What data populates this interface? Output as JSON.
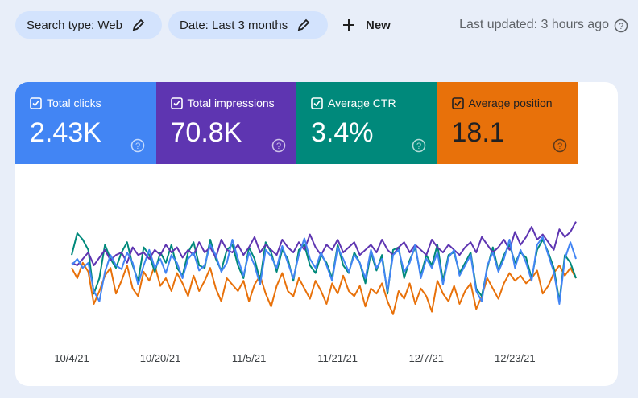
{
  "filters": [
    "Search type: Web",
    "Date: Last 3 months"
  ],
  "new_button": "New",
  "last_updated": "Last updated: 3 hours ago",
  "chart_data": {
    "type": "line",
    "categories": [
      "10/4/21",
      null,
      null,
      null,
      null,
      null,
      null,
      null,
      null,
      null,
      null,
      null,
      null,
      null,
      null,
      null,
      "10/20/21",
      null,
      null,
      null,
      null,
      null,
      null,
      null,
      null,
      null,
      null,
      null,
      null,
      null,
      null,
      null,
      "11/5/21",
      null,
      null,
      null,
      null,
      null,
      null,
      null,
      null,
      null,
      null,
      null,
      null,
      null,
      null,
      null,
      "11/21/21",
      null,
      null,
      null,
      null,
      null,
      null,
      null,
      null,
      null,
      null,
      null,
      null,
      null,
      null,
      null,
      "12/7/21",
      null,
      null,
      null,
      null,
      null,
      null,
      null,
      null,
      null,
      null,
      null,
      null,
      null,
      null,
      null,
      "12/23/21",
      null,
      null,
      null,
      null,
      null,
      null,
      null,
      null,
      null,
      null,
      null
    ],
    "ylim": [
      0,
      100
    ],
    "series": [
      {
        "name": "Total clicks",
        "total": "2.43K",
        "color": "#4285f4",
        "values": [
          50,
          55,
          48,
          52,
          30,
          22,
          45,
          58,
          50,
          47,
          60,
          52,
          35,
          50,
          62,
          48,
          55,
          44,
          58,
          52,
          40,
          55,
          60,
          46,
          50,
          66,
          58,
          45,
          52,
          70,
          55,
          42,
          60,
          50,
          35,
          62,
          57,
          48,
          65,
          52,
          40,
          58,
          71,
          55,
          48,
          60,
          50,
          38,
          64,
          55,
          45,
          58,
          52,
          40,
          62,
          48,
          55,
          30,
          58,
          62,
          45,
          52,
          66,
          40,
          55,
          48,
          60,
          35,
          56,
          62,
          42,
          50,
          58,
          30,
          22,
          50,
          60,
          45,
          55,
          70,
          48,
          62,
          52,
          38,
          66,
          72,
          58,
          45,
          20,
          55,
          68,
          55
        ]
      },
      {
        "name": "Total impressions",
        "total": "70.8K",
        "color": "#5e35b1",
        "values": [
          52,
          50,
          55,
          60,
          50,
          56,
          62,
          54,
          58,
          60,
          52,
          64,
          58,
          60,
          55,
          62,
          58,
          66,
          60,
          64,
          56,
          62,
          58,
          68,
          60,
          64,
          56,
          70,
          62,
          60,
          66,
          58,
          64,
          72,
          60,
          66,
          62,
          58,
          70,
          64,
          60,
          68,
          62,
          74,
          64,
          58,
          66,
          62,
          70,
          60,
          64,
          68,
          58,
          62,
          66,
          60,
          70,
          62,
          58,
          64,
          68,
          60,
          66,
          62,
          58,
          70,
          64,
          60,
          66,
          62,
          58,
          64,
          68,
          60,
          72,
          66,
          60,
          64,
          70,
          62,
          76,
          66,
          72,
          80,
          70,
          74,
          68,
          62,
          78,
          72,
          76,
          84
        ]
      },
      {
        "name": "Average CTR",
        "total": "3.4%",
        "color": "#00897b",
        "values": [
          58,
          75,
          70,
          62,
          28,
          40,
          66,
          55,
          48,
          60,
          68,
          50,
          38,
          64,
          58,
          45,
          60,
          52,
          66,
          48,
          42,
          60,
          68,
          50,
          48,
          70,
          55,
          46,
          62,
          66,
          50,
          40,
          64,
          55,
          38,
          68,
          60,
          45,
          62,
          55,
          38,
          62,
          66,
          50,
          44,
          58,
          52,
          40,
          66,
          50,
          44,
          60,
          52,
          36,
          60,
          46,
          58,
          28,
          62,
          64,
          40,
          54,
          64,
          42,
          58,
          50,
          66,
          38,
          58,
          60,
          44,
          52,
          60,
          32,
          26,
          48,
          64,
          46,
          58,
          66,
          52,
          60,
          56,
          40,
          62,
          70,
          60,
          48,
          22,
          58,
          52,
          40
        ]
      },
      {
        "name": "Average position",
        "total": "18.1",
        "color": "#e8710a",
        "values": [
          48,
          40,
          52,
          45,
          20,
          30,
          42,
          48,
          28,
          38,
          50,
          32,
          26,
          45,
          38,
          50,
          34,
          40,
          30,
          44,
          36,
          26,
          42,
          30,
          38,
          48,
          32,
          22,
          40,
          35,
          30,
          38,
          22,
          35,
          42,
          28,
          18,
          34,
          44,
          30,
          26,
          40,
          32,
          24,
          38,
          30,
          20,
          36,
          28,
          42,
          30,
          26,
          34,
          18,
          32,
          28,
          36,
          22,
          12,
          30,
          24,
          36,
          20,
          32,
          26,
          14,
          38,
          28,
          22,
          34,
          20,
          30,
          36,
          16,
          26,
          40,
          32,
          24,
          36,
          44,
          38,
          42,
          36,
          40,
          46,
          28,
          34,
          44,
          50,
          42,
          48,
          40
        ]
      }
    ]
  }
}
